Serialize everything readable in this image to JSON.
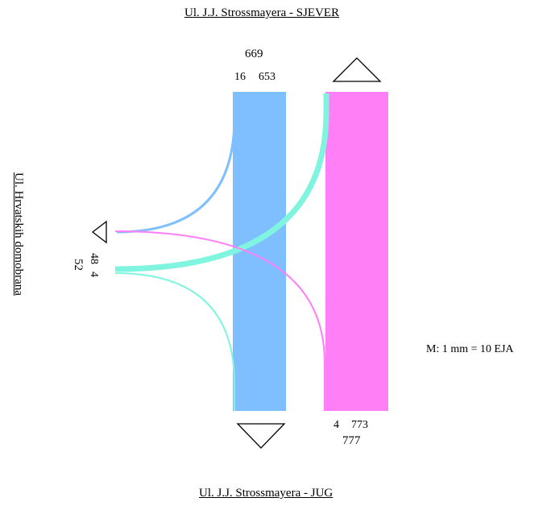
{
  "streets": {
    "north": "Ul. J.J. Strossmayera - SJEVER",
    "south": "Ul. J.J. Strossmayera - JUG",
    "west": "Ul. Hrvatskih domobrana"
  },
  "scale": "M:   1 mm = 10 EJA",
  "north_approach": {
    "total": "669",
    "left": "16",
    "through": "653"
  },
  "south_approach": {
    "left": "4",
    "through": "773",
    "total": "777"
  },
  "west_approach": {
    "right": "48",
    "left": "4",
    "total": "52"
  },
  "colors": {
    "north_through": "#7fbfff",
    "south_through": "#ff7ff7",
    "west_left": "#7ff5df",
    "outline": "#000000"
  }
}
